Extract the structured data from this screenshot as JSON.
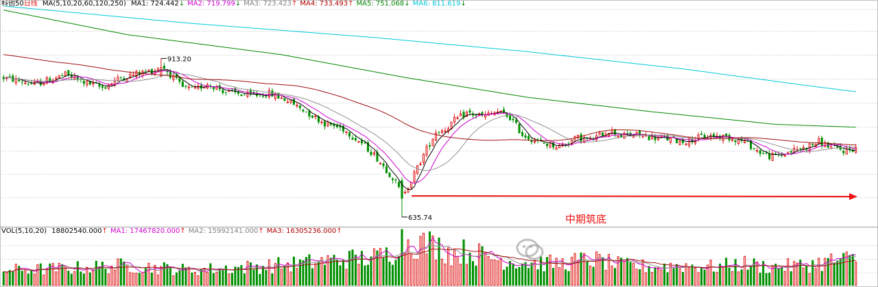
{
  "legend": {
    "name": "科创50",
    "period": "日线",
    "ma_set": "MA(5,10,20,60,120,250)",
    "items": [
      {
        "label": "MA1:",
        "value": "724.442",
        "dir": "down",
        "color": "#000000"
      },
      {
        "label": "MA2:",
        "value": "719.799",
        "dir": "down",
        "color": "#d000d0"
      },
      {
        "label": "MA3:",
        "value": "723.423",
        "dir": "up",
        "color": "#808080"
      },
      {
        "label": "MA4:",
        "value": "733.493",
        "dir": "up",
        "color": "#b00000"
      },
      {
        "label": "MA5:",
        "value": "751.068",
        "dir": "down",
        "color": "#008800"
      },
      {
        "label": "MA6:",
        "value": "811.619",
        "dir": "down",
        "color": "#00c8d8"
      }
    ]
  },
  "vol_legend": {
    "set": "VOL(5,10,20)",
    "items": [
      {
        "label": "",
        "value": "18802540.000",
        "dir": "up",
        "color": "#000000"
      },
      {
        "label": "MA1:",
        "value": "17467820.000",
        "dir": "up",
        "color": "#d000d0"
      },
      {
        "label": "MA2:",
        "value": "15992141.000",
        "dir": "up",
        "color": "#808080"
      },
      {
        "label": "MA3:",
        "value": "16305236.000",
        "dir": "up",
        "color": "#b00000"
      }
    ]
  },
  "arrows": {
    "up": "↑",
    "down": "↓"
  },
  "colors": {
    "up": "#e01010",
    "down": "#009000",
    "grid": "#c0c0c0",
    "ma5": "#000000",
    "ma10": "#d000d0",
    "ma20": "#909090",
    "ma60": "#a01010",
    "ma120": "#008800",
    "ma250": "#00c8d8",
    "arrow": "#ee1111",
    "annotation": "#ee1111"
  },
  "chart_data": {
    "type": "candlestick",
    "title": "科创50 日线",
    "ylim": [
      620,
      1000
    ],
    "high_label": "913.20",
    "low_label": "635.74",
    "annotation": "中期筑底",
    "price_anchors": [
      [
        0,
        880
      ],
      [
        10,
        868
      ],
      [
        20,
        885
      ],
      [
        26,
        872
      ],
      [
        32,
        862
      ],
      [
        38,
        880
      ],
      [
        44,
        888
      ],
      [
        49,
        893
      ],
      [
        51,
        902
      ],
      [
        54,
        885
      ],
      [
        58,
        862
      ],
      [
        62,
        858
      ],
      [
        66,
        870
      ],
      [
        72,
        855
      ],
      [
        80,
        848
      ],
      [
        86,
        852
      ],
      [
        92,
        840
      ],
      [
        98,
        820
      ],
      [
        104,
        800
      ],
      [
        110,
        790
      ],
      [
        116,
        765
      ],
      [
        120,
        745
      ],
      [
        126,
        705
      ],
      [
        129,
        675
      ],
      [
        132,
        700
      ],
      [
        136,
        745
      ],
      [
        140,
        785
      ],
      [
        143,
        790
      ],
      [
        146,
        805
      ],
      [
        150,
        818
      ],
      [
        155,
        812
      ],
      [
        160,
        820
      ],
      [
        164,
        810
      ],
      [
        168,
        780
      ],
      [
        174,
        765
      ],
      [
        180,
        760
      ],
      [
        186,
        775
      ],
      [
        190,
        770
      ],
      [
        196,
        788
      ],
      [
        200,
        778
      ],
      [
        206,
        780
      ],
      [
        210,
        775
      ],
      [
        216,
        772
      ],
      [
        220,
        768
      ],
      [
        226,
        776
      ],
      [
        230,
        778
      ],
      [
        236,
        774
      ],
      [
        240,
        768
      ],
      [
        244,
        752
      ],
      [
        248,
        742
      ],
      [
        252,
        745
      ],
      [
        256,
        753
      ],
      [
        260,
        758
      ],
      [
        264,
        768
      ],
      [
        268,
        758
      ],
      [
        272,
        752
      ],
      [
        276,
        756
      ]
    ],
    "volume_anchors": [
      [
        0,
        10
      ],
      [
        20,
        11
      ],
      [
        40,
        13
      ],
      [
        60,
        10
      ],
      [
        80,
        12
      ],
      [
        95,
        14
      ],
      [
        110,
        17
      ],
      [
        120,
        18
      ],
      [
        126,
        21
      ],
      [
        128,
        30
      ],
      [
        134,
        27
      ],
      [
        140,
        26
      ],
      [
        145,
        21
      ],
      [
        150,
        22
      ],
      [
        160,
        17
      ],
      [
        170,
        15
      ],
      [
        180,
        14
      ],
      [
        190,
        17
      ],
      [
        200,
        13
      ],
      [
        210,
        12
      ],
      [
        220,
        13
      ],
      [
        230,
        12
      ],
      [
        240,
        14
      ],
      [
        248,
        12
      ],
      [
        260,
        13
      ],
      [
        268,
        16
      ],
      [
        276,
        17
      ]
    ],
    "series": [
      {
        "name": "MA1",
        "period": 5
      },
      {
        "name": "MA2",
        "period": 10
      },
      {
        "name": "MA3",
        "period": 20
      },
      {
        "name": "MA4",
        "period": 60
      },
      {
        "name": "MA5",
        "period": 120
      },
      {
        "name": "MA6",
        "period": 250
      }
    ]
  }
}
